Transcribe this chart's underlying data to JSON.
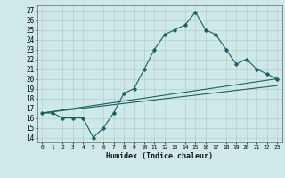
{
  "xlabel": "Humidex (Indice chaleur)",
  "xlim": [
    -0.5,
    23.5
  ],
  "ylim": [
    13.5,
    27.5
  ],
  "xticks": [
    0,
    1,
    2,
    3,
    4,
    5,
    6,
    7,
    8,
    9,
    10,
    11,
    12,
    13,
    14,
    15,
    16,
    17,
    18,
    19,
    20,
    21,
    22,
    23
  ],
  "yticks": [
    14,
    15,
    16,
    17,
    18,
    19,
    20,
    21,
    22,
    23,
    24,
    25,
    26,
    27
  ],
  "bg_color": "#cfe8e8",
  "grid_color": "#b0d0d0",
  "line_color": "#1a6060",
  "line1_x": [
    0,
    1,
    2,
    3,
    4,
    5,
    6,
    7,
    8,
    9,
    10,
    11,
    12,
    13,
    14,
    15,
    16,
    17,
    18,
    19,
    20,
    21,
    22,
    23
  ],
  "line1_y": [
    16.5,
    16.5,
    16.0,
    16.0,
    16.0,
    14.0,
    15.0,
    16.5,
    18.5,
    19.0,
    21.0,
    23.0,
    24.5,
    25.0,
    25.5,
    26.8,
    25.0,
    24.5,
    23.0,
    21.5,
    22.0,
    21.0,
    20.5,
    20.0
  ],
  "line2_x": [
    0,
    23
  ],
  "line2_y": [
    16.5,
    20.0
  ],
  "line3_x": [
    0,
    23
  ],
  "line3_y": [
    16.5,
    19.3
  ]
}
